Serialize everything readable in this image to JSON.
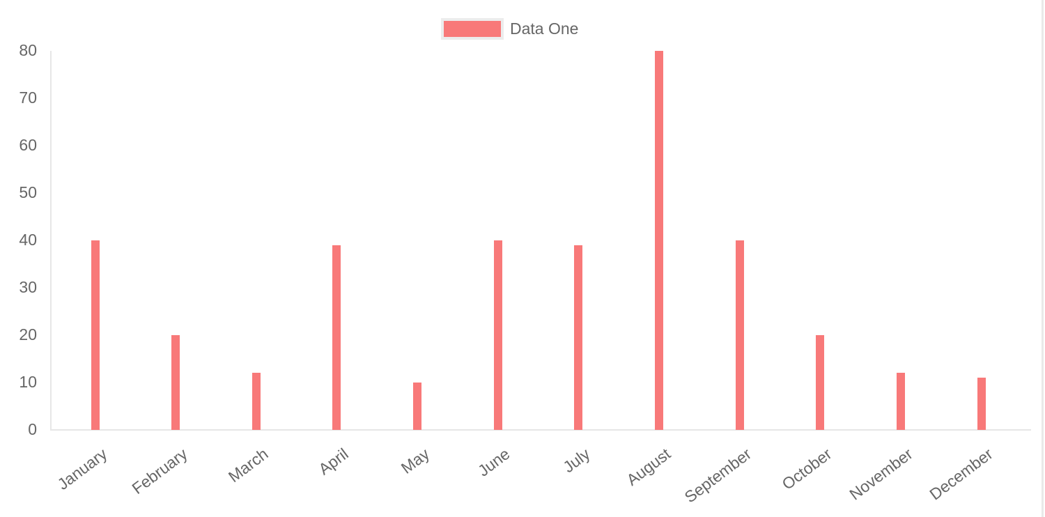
{
  "chart_data": {
    "type": "bar",
    "title": "",
    "categories": [
      "January",
      "February",
      "March",
      "April",
      "May",
      "June",
      "July",
      "August",
      "September",
      "October",
      "November",
      "December"
    ],
    "series": [
      {
        "name": "Data One",
        "values": [
          40,
          20,
          12,
          39,
          10,
          40,
          39,
          80,
          40,
          20,
          12,
          11
        ]
      }
    ],
    "bar_color": "#f87979",
    "legend_swatch_border_color": "#ececec",
    "axis_line_color": "#e6e6e6",
    "tick_text_color": "#666666",
    "y_axis": {
      "min": 0,
      "max": 80,
      "step": 10,
      "tick_labels": [
        "0",
        "10",
        "20",
        "30",
        "40",
        "50",
        "60",
        "70",
        "80"
      ]
    },
    "grid": "off",
    "legend": {
      "position": "top",
      "label": "Data One"
    }
  },
  "page": {
    "scrollbar_color": "#e9e9e9"
  }
}
